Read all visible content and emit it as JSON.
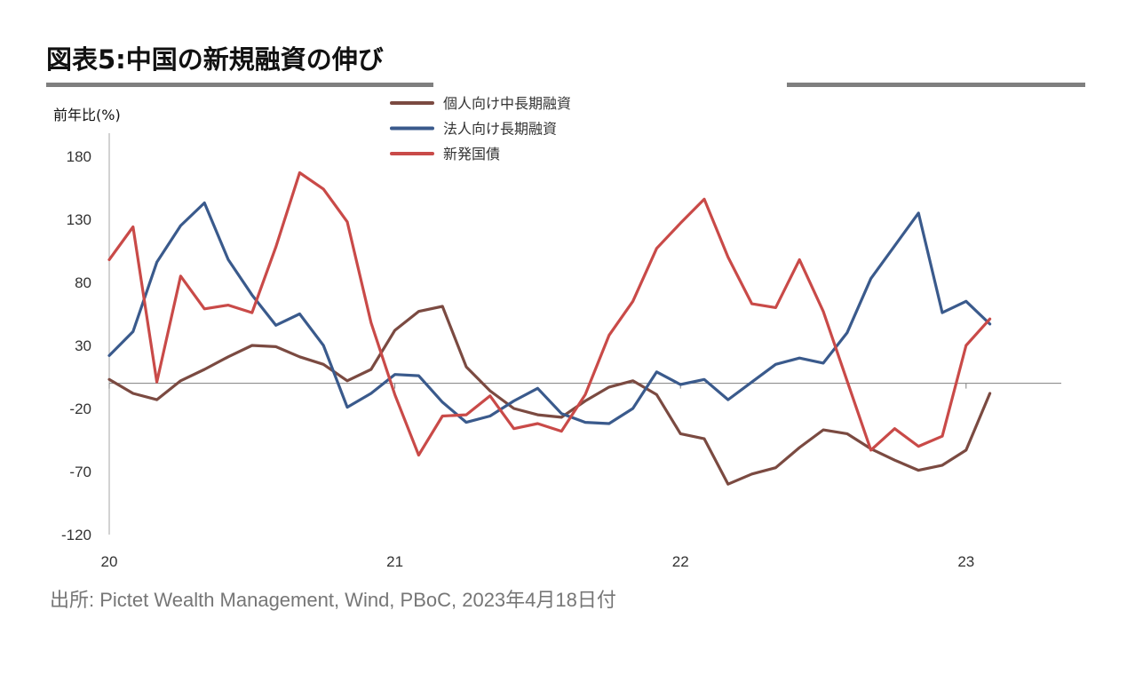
{
  "title": "図表5:中国の新規融資の伸び",
  "source": "出所: Pictet Wealth Management, Wind, PBoC, 2023年4月18日付",
  "chart_data": {
    "type": "line",
    "ylabel": "前年比(%)",
    "ylim": [
      -120,
      180
    ],
    "yticks": [
      180,
      130,
      80,
      30,
      -20,
      -70,
      -120
    ],
    "x_tick_labels": [
      "20",
      "21",
      "22",
      "23"
    ],
    "x_tick_months": [
      0,
      12,
      24,
      36
    ],
    "x_range_months": [
      0,
      41
    ],
    "legend_position": "top-center",
    "series": [
      {
        "name": "個人向け中長期融資",
        "color": "#7b4a41",
        "values": [
          3,
          -8,
          -13,
          2,
          11,
          21,
          30,
          29,
          21,
          15,
          2,
          11,
          42,
          57,
          61,
          13,
          -6,
          -20,
          -25,
          -27,
          -14,
          -3,
          2,
          -9,
          -40,
          -44,
          -80,
          -72,
          -67,
          -51,
          -37,
          -40,
          -52,
          -61,
          -69,
          -65,
          -53,
          -8
        ]
      },
      {
        "name": "法人向け長期融資",
        "color": "#3a5a8c",
        "values": [
          22,
          41,
          96,
          125,
          143,
          98,
          70,
          46,
          55,
          30,
          -19,
          -8,
          7,
          6,
          -15,
          -31,
          -26,
          -14,
          -4,
          -24,
          -31,
          -32,
          -20,
          9,
          -1,
          3,
          -13,
          1,
          15,
          20,
          16,
          40,
          83,
          109,
          135,
          56,
          65,
          47
        ]
      },
      {
        "name": "新発国債",
        "color": "#c94a48",
        "values": [
          98,
          124,
          1,
          85,
          59,
          62,
          56,
          108,
          167,
          154,
          128,
          48,
          -9,
          -57,
          -26,
          -25,
          -10,
          -36,
          -32,
          -38,
          -9,
          38,
          65,
          107,
          127,
          146,
          100,
          63,
          60,
          98,
          57,
          2,
          -53,
          -36,
          -50,
          -42,
          30,
          51
        ]
      }
    ]
  }
}
